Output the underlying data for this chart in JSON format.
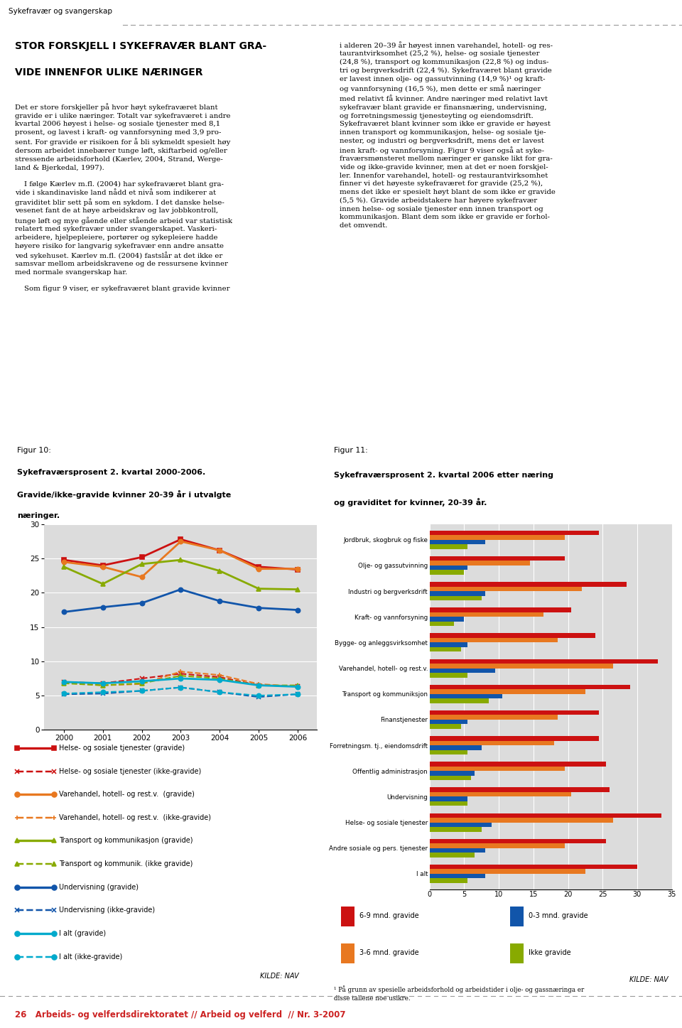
{
  "page_title": "Sykefravær og svangerskap",
  "heading_line1": "STOR FORSKJELL I SYKEFRAVÆR BLANT GRA-",
  "heading_line2": "VIDE INNENFOR ULIKE NÆRINGER",
  "subtext_left_lines": [
    "Det er store forskjeller på hvor høyt sykefraværet blant",
    "gravide er i ulike næringer. Totalt var sykefraværet i andre",
    "kvartal 2006 høyest i helse- og sosiale tjenester med 8,1",
    "prosent, og lavest i kraft- og vannforsyning med 3,9 pro-",
    "sent. For gravide er risikoen for å bli sykmeldt spesielt høy",
    "dersom arbeidet innebærer tunge løft, skiftarbeid og/eller",
    "stressende arbeidsforhold (Kærlev, 2004, Strand, Werge-",
    "land & Bjerkedal, 1997).",
    "",
    "    I følge Kærlev m.fl. (2004) har sykefraværet blant gra-",
    "vide i skandinaviske land nådd et nivå som indikerer at",
    "graviditet blir sett på som en sykdom. I det danske helse-",
    "vesenet fant de at høye arbeidskrav og lav jobbkontroll,",
    "tunge løft og mye gående eller stående arbeid var statistisk",
    "relatert med sykefravær under svangerskapet. Vaskeri-",
    "arbeidere, hjelpepleiere, portører og sykepleiere hadde",
    "høyere risiko for langvarig sykefravær enn andre ansatte",
    "ved sykehuset. Kærlev m.fl. (2004) fastslår at det ikke er",
    "samsvar mellom arbeidskravene og de ressursene kvinner",
    "med normale svangerskap har.",
    "",
    "    Som figur 9 viser, er sykefraværet blant gravide kvinner"
  ],
  "subtext_right_lines": [
    "i alderen 20–39 år høyest innen varehandel, hotell- og res-",
    "taurantvirksomhet (25,2 %), helse- og sosiale tjenester",
    "(24,8 %), transport og kommunikasjon (22,8 %) og indus-",
    "tri og bergverksdrift (22,4 %). Sykefraværet blant gravide",
    "er lavest innen olje- og gassutvinning (14,9 %)¹ og kraft-",
    "og vannforsyning (16,5 %), men dette er små næringer",
    "med relativt få kvinner. Andre næringer med relativt lavt",
    "sykefravær blant gravide er finansnæring, undervisning,",
    "og forretningsmessig tjenesteyting og eiendomsdrift.",
    "Sykefraværet blant kvinner som ikke er gravide er høyest",
    "innen transport og kommunikasjon, helse- og sosiale tje-",
    "nester, og industri og bergverksdrift, mens det er lavest",
    "inen kraft- og vannforsyning. Figur 9 viser også at syke-",
    "fraværsmønsteret mellom næringer er ganske likt for gra-",
    "vide og ikke-gravide kvinner, men at det er noen forskjel-",
    "ler. Innenfor varehandel, hotell- og restaurantvirksomhet",
    "finner vi det høyeste sykefraværet for gravide (25,2 %),",
    "mens det ikke er spesielt høyt blant de som ikke er gravide",
    "(5,5 %). Gravide arbeidstakere har høyere sykefravær",
    "innen helse- og sosiale tjenester enn innen transport og",
    "kommunikasjon. Blant dem som ikke er gravide er forhol-",
    "det omvendt."
  ],
  "fig10_title_normal": "Figur 10:",
  "fig10_title_bold": [
    "Sykefraværsprosent 2. kvartal 2000-2006.",
    "Gravide/ikke-gravide kvinner 20-39 år i utvalgte",
    "næringer."
  ],
  "fig11_title_normal": "Figur 11:",
  "fig11_title_bold": [
    "Sykefraværsprosent 2. kvartal 2006 etter næring",
    "og graviditet for kvinner, 20-39 år."
  ],
  "fig10_years": [
    2000,
    2001,
    2002,
    2003,
    2004,
    2005,
    2006
  ],
  "fig10_series": [
    {
      "key": "helse_gravide",
      "label": "Helse- og sosiale tjenester (gravide)",
      "values": [
        24.8,
        24.0,
        25.2,
        27.8,
        26.2,
        23.8,
        23.4
      ],
      "color": "#cc1111",
      "dashes": [],
      "marker": "s",
      "linewidth": 2.0
    },
    {
      "key": "helse_ikke",
      "label": "Helse- og sosiale tjenester (ikke-gravide)",
      "values": [
        7.0,
        6.8,
        7.5,
        8.2,
        7.7,
        6.5,
        6.4
      ],
      "color": "#cc1111",
      "dashes": [
        5,
        3
      ],
      "marker": "x",
      "linewidth": 1.5
    },
    {
      "key": "varehandel_gravide",
      "label": "Varehandel, hotell- og rest.v.  (gravide)",
      "values": [
        24.5,
        23.8,
        22.3,
        27.5,
        26.2,
        23.5,
        23.5
      ],
      "color": "#e87820",
      "dashes": [],
      "marker": "o",
      "linewidth": 2.0
    },
    {
      "key": "varehandel_ikke",
      "label": "Varehandel, hotell- og rest.v.  (ikke-gravide)",
      "values": [
        6.9,
        6.5,
        6.7,
        8.5,
        8.0,
        6.7,
        6.3
      ],
      "color": "#e87820",
      "dashes": [
        5,
        3
      ],
      "marker": "+",
      "linewidth": 1.5
    },
    {
      "key": "transport_gravide",
      "label": "Transport og kommunikasjon (gravide)",
      "values": [
        23.8,
        21.3,
        24.2,
        24.8,
        23.2,
        20.6,
        20.5
      ],
      "color": "#88aa00",
      "dashes": [],
      "marker": "^",
      "linewidth": 2.0
    },
    {
      "key": "transport_ikke",
      "label": "Transport og kommunik. (ikke gravide)",
      "values": [
        6.8,
        6.5,
        6.8,
        7.9,
        7.5,
        6.5,
        6.5
      ],
      "color": "#88aa00",
      "dashes": [
        5,
        3
      ],
      "marker": "^",
      "linewidth": 1.5
    },
    {
      "key": "undervisning_gravide",
      "label": "Undervisning (gravide)",
      "values": [
        17.2,
        17.9,
        18.5,
        20.5,
        18.8,
        17.8,
        17.5
      ],
      "color": "#1155aa",
      "dashes": [],
      "marker": "o",
      "linewidth": 2.0
    },
    {
      "key": "undervisning_ikke",
      "label": "Undervisning (ikke-gravide)",
      "values": [
        5.2,
        5.3,
        5.7,
        6.2,
        5.5,
        4.8,
        5.2
      ],
      "color": "#1155aa",
      "dashes": [
        5,
        3
      ],
      "marker": "x",
      "linewidth": 1.5
    },
    {
      "key": "ialt_gravide",
      "label": "I alt (gravide)",
      "values": [
        7.0,
        6.8,
        7.1,
        7.5,
        7.3,
        6.5,
        6.3
      ],
      "color": "#00aacc",
      "dashes": [],
      "marker": "o",
      "linewidth": 2.0
    },
    {
      "key": "ialt_ikke",
      "label": "I alt (ikke-gravide)",
      "values": [
        5.3,
        5.5,
        5.7,
        6.2,
        5.5,
        5.0,
        5.2
      ],
      "color": "#00aacc",
      "dashes": [
        5,
        3
      ],
      "marker": "o",
      "linewidth": 1.5
    }
  ],
  "fig11_categories": [
    "Jordbruk, skogbruk og fiske",
    "Olje- og gassutvinning",
    "Industri og bergverksdrift",
    "Kraft- og vannforsyning",
    "Bygge- og anleggsvirksomhet",
    "Varehandel, hotell- og rest.v.",
    "Transport og kommuniksjon",
    "Finanstjenester",
    "Forretningsm. tj., eiendomsdrift",
    "Offentlig administrasjon",
    "Undervisning",
    "Helse- og sosiale tjenester",
    "Andre sosiale og pers. tjenester",
    "I alt"
  ],
  "fig11_data": {
    "gravide_6_9": [
      24.5,
      19.5,
      28.5,
      20.5,
      24.0,
      33.0,
      29.0,
      24.5,
      24.5,
      25.5,
      26.0,
      33.5,
      25.5,
      30.0
    ],
    "gravide_3_6": [
      19.5,
      14.5,
      22.0,
      16.5,
      18.5,
      26.5,
      22.5,
      18.5,
      18.0,
      19.5,
      20.5,
      26.5,
      19.5,
      22.5
    ],
    "gravide_0_3": [
      8.0,
      5.5,
      8.0,
      5.0,
      5.5,
      9.5,
      10.5,
      5.5,
      7.5,
      6.5,
      5.5,
      9.0,
      8.0,
      8.0
    ],
    "ikke_gravide": [
      5.5,
      5.0,
      7.5,
      3.5,
      4.5,
      5.5,
      8.5,
      4.5,
      5.5,
      6.0,
      5.5,
      7.5,
      6.5,
      5.5
    ]
  },
  "fig11_bar_colors": {
    "gravide_6_9": "#cc1111",
    "gravide_3_6": "#e87820",
    "gravide_0_3": "#1155aa",
    "ikke_gravide": "#88aa00"
  },
  "fig11_legend_labels": [
    "6-9 mnd. gravide",
    "3-6 mnd. gravide",
    "0-3 mnd. gravide",
    "Ikke gravide"
  ],
  "fig11_legend_colors": [
    "#cc1111",
    "#e87820",
    "#1155aa",
    "#88aa00"
  ],
  "kilde_nav": "KILDE: NAV",
  "footnote": "¹ På grunn av spesielle arbeidsforhold og arbeidstider i olje- og gassnæringa er\ndisse tallene noe usikre.",
  "bottom_text": "26   Arbeids- og velferdsdirektoratet // Arbeid og velferd  // Nr. 3-2007",
  "chart_bg": "#dcdcdc",
  "page_bg": "#ffffff",
  "bottom_bar_color": "#ffffff",
  "bottom_text_color": "#cc2222"
}
